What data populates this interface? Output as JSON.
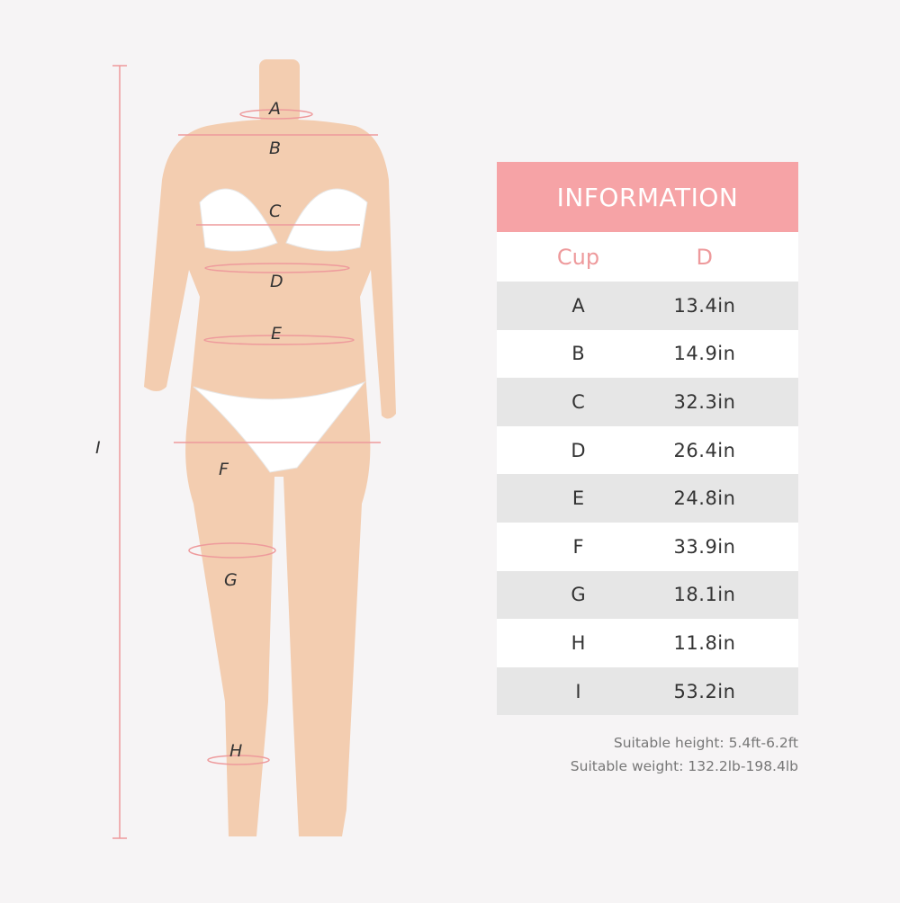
{
  "figure": {
    "labels": [
      "A",
      "B",
      "C",
      "D",
      "E",
      "F",
      "G",
      "H",
      "I"
    ],
    "colors": {
      "skin": "#f3cdb0",
      "line": "#ee9a9c",
      "garment": "#ffffff"
    }
  },
  "table": {
    "title": "INFORMATION",
    "columns": [
      "Cup",
      "D"
    ],
    "rows": [
      {
        "label": "A",
        "value": "13.4in"
      },
      {
        "label": "B",
        "value": "14.9in"
      },
      {
        "label": "C",
        "value": "32.3in"
      },
      {
        "label": "D",
        "value": "26.4in"
      },
      {
        "label": "E",
        "value": "24.8in"
      },
      {
        "label": "F",
        "value": "33.9in"
      },
      {
        "label": "G",
        "value": "18.1in"
      },
      {
        "label": "H",
        "value": "11.8in"
      },
      {
        "label": "I",
        "value": "53.2in"
      }
    ],
    "colors": {
      "header": "#f6a3a6",
      "accent_text": "#ee9a9c",
      "stripe": "#e6e6e6"
    }
  },
  "notes": {
    "height": "Suitable height: 5.4ft-6.2ft",
    "weight": "Suitable weight: 132.2lb-198.4lb"
  }
}
